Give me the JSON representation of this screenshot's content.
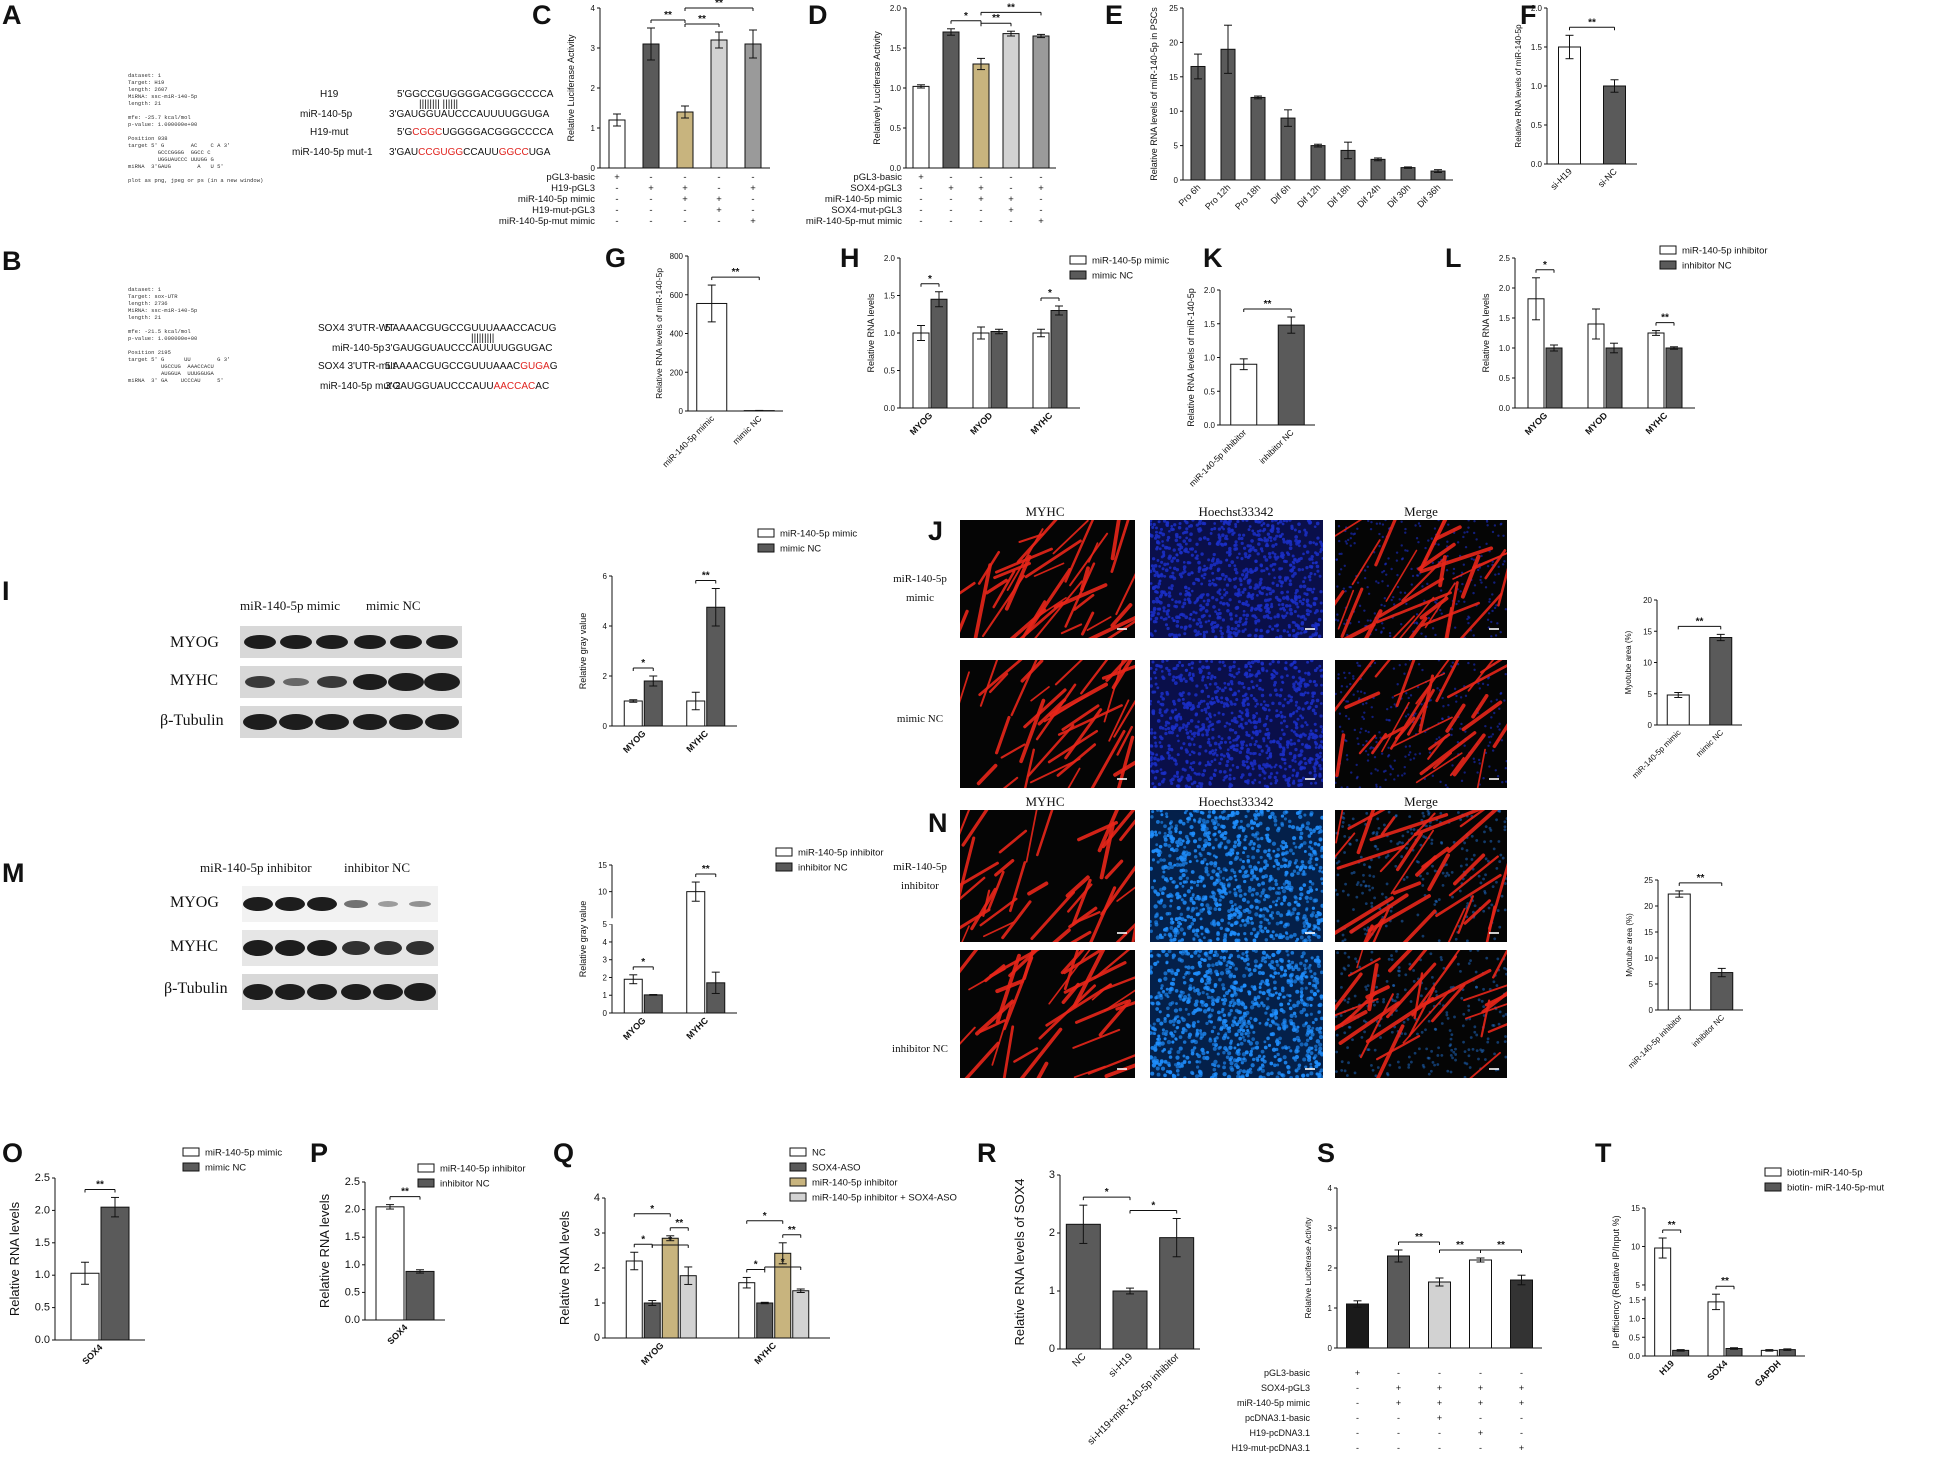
{
  "panel_letters": [
    "A",
    "B",
    "C",
    "D",
    "E",
    "F",
    "G",
    "H",
    "K",
    "L",
    "I",
    "J",
    "M",
    "N",
    "O",
    "P",
    "Q",
    "R",
    "S",
    "T"
  ],
  "colors": {
    "white": "#ffffff",
    "dark": "#5a5a5a",
    "khaki": "#c8b47e",
    "light": "#d2d2d2",
    "grey": "#9a9a9a",
    "black": "#1a1a1a",
    "red": "#e0231e",
    "fluor_red": "#e8261a",
    "fluor_blue": "#1b2fc8",
    "fluor_cyan": "#1f8fff"
  },
  "panelA": {
    "rnahybrid": "dataset: 1\nTarget: H19\nlength: 2607\nMiRNA: ssc-miR-140-5p\nlength: 21\n\nmfe: -25.7 kcal/mol\np-value: 1.000000e+00\n\nPosition 938\ntarget 5' G        AC    C A 3'\n         GCCCGGGG  GGCC C\n         UGGUAUCCC UUUGG G\nmiRNA  3'GAUG        A   U 5'\n\nplot as png, jpeg or ps (in a new window)",
    "labels": [
      "H19",
      "miR-140-5p",
      "H19-mut",
      "miR-140-5p mut-1"
    ],
    "seq_h19": "5'GGCCGUGGGGACGGGCCCCA",
    "pairs": "|||||||| ||||||",
    "seq_mir": "3'GAUGGUAUCCCAUUUUGGUGA",
    "mut_pre": "5'G",
    "mut_red": "CGGC",
    "mut_post": "UGGGGACGGGCCCCA",
    "mut1_pre": "3'GAU",
    "mut1_red1": "CCGUGG",
    "mut1_mid": "CCAUU",
    "mut1_red2": "GGCC",
    "mut1_post": "UGA"
  },
  "panelB": {
    "rnahybrid": "dataset: 1\nTarget: sox-UTR\nlength: 2736\nMiRNA: ssc-miR-140-5p\nlength: 21\n\nmfe: -21.5 kcal/mol\np-value: 1.000000e+00\n\nPosition 2195\ntarget 5' G      UU        G 3'\n          UGCCUG  AAACCACU\n          AUGGUA  UUUGGUGA\nmiRNA  3' GA    UCCCAU     5'",
    "labels": [
      "SOX4 3'UTR-WT",
      "miR-140-5p",
      "SOX4 3'UTR-mut",
      "miR-140-5p mut-2"
    ],
    "seq_wt": "5'AAAACGUGCCGUUUAAACCACUG",
    "pairs": "|||||||||",
    "seq_mir": "3'GAUGGUAUCCCAUUUUGGUGAC",
    "mut_pre": "5'AAAACGUGCCGUUUAAAC",
    "mut_red": "GUGA",
    "mut_post": "G",
    "mut2_pre": "3'GAUGGUAUCCCAUU",
    "mut2_red": "AACCAC",
    "mut2_post": "AC"
  },
  "chart_data": [
    {
      "id": "C",
      "type": "bar",
      "ylabel": "Relative Luciferase Activity",
      "ylim": [
        0,
        4
      ],
      "yticks": [
        0,
        1,
        2,
        3,
        4
      ],
      "values": [
        1.2,
        3.1,
        1.4,
        3.2,
        3.1
      ],
      "errors": [
        0.15,
        0.4,
        0.15,
        0.2,
        0.35
      ],
      "colors": [
        "#ffffff",
        "#5a5a5a",
        "#c8b47e",
        "#d2d2d2",
        "#9a9a9a"
      ],
      "sig": [
        {
          "a": 1,
          "b": 2,
          "t": "**"
        },
        {
          "a": 2,
          "b": 3,
          "t": "**"
        },
        {
          "a": 2,
          "b": 4,
          "t": "**"
        }
      ],
      "table_rows": [
        "pGL3-basic",
        "H19-pGL3",
        "miR-140-5p mimic",
        "H19-mut-pGL3",
        "miR-140-5p-mut mimic"
      ],
      "table": [
        [
          "+",
          "-",
          "-",
          "-",
          "-"
        ],
        [
          "-",
          "+",
          "+",
          "-",
          "+"
        ],
        [
          "-",
          "-",
          "+",
          "+",
          "-"
        ],
        [
          "-",
          "-",
          "-",
          "+",
          "-"
        ],
        [
          "-",
          "-",
          "-",
          "-",
          "+"
        ]
      ]
    },
    {
      "id": "D",
      "type": "bar",
      "ylabel": "Relatively Luciferase Activity",
      "ylim": [
        0,
        2.0
      ],
      "yticks": [
        "0.0",
        "0.5",
        "1.0",
        "1.5",
        "2.0"
      ],
      "values": [
        1.02,
        1.7,
        1.3,
        1.68,
        1.65
      ],
      "errors": [
        0.02,
        0.04,
        0.07,
        0.03,
        0.02
      ],
      "colors": [
        "#ffffff",
        "#5a5a5a",
        "#c8b47e",
        "#d2d2d2",
        "#9a9a9a"
      ],
      "sig": [
        {
          "a": 1,
          "b": 2,
          "t": "*"
        },
        {
          "a": 2,
          "b": 3,
          "t": "**"
        },
        {
          "a": 2,
          "b": 4,
          "t": "**"
        }
      ],
      "table_rows": [
        "pGL3-basic",
        "SOX4-pGL3",
        "miR-140-5p mimic",
        "SOX4-mut-pGL3",
        "miR-140-5p-mut mimic"
      ],
      "table": [
        [
          "+",
          "-",
          "-",
          "-",
          "-"
        ],
        [
          "-",
          "+",
          "+",
          "-",
          "+"
        ],
        [
          "-",
          "-",
          "+",
          "+",
          "-"
        ],
        [
          "-",
          "-",
          "-",
          "+",
          "-"
        ],
        [
          "-",
          "-",
          "-",
          "-",
          "+"
        ]
      ]
    },
    {
      "id": "E",
      "type": "bar",
      "ylabel": "Relative RNA levels of miR-140-5p in PSCs",
      "ylim": [
        0,
        25
      ],
      "yticks": [
        0,
        5,
        10,
        15,
        20,
        25
      ],
      "categories": [
        "Pro 6h",
        "Pro 12h",
        "Pro 18h",
        "Dif 6h",
        "Dif 12h",
        "Dif 18h",
        "Dif 24h",
        "Dif 30h",
        "Dif 36h"
      ],
      "values": [
        16.5,
        19,
        12,
        9,
        5,
        4.3,
        3,
        1.8,
        1.3
      ],
      "errors": [
        1.8,
        3.5,
        0.2,
        1.2,
        0.2,
        1.2,
        0.2,
        0.1,
        0.2
      ],
      "colors": [
        "#5a5a5a"
      ]
    },
    {
      "id": "F",
      "type": "bar",
      "ylabel": "Relative RNA levels of miR-140-5p",
      "ylim": [
        0,
        2.0
      ],
      "yticks": [
        "0.0",
        "0.5",
        "1.0",
        "1.5",
        "2.0"
      ],
      "categories": [
        "si-H19",
        "si-NC"
      ],
      "values": [
        1.5,
        1.0
      ],
      "errors": [
        0.15,
        0.08
      ],
      "colors": [
        "#ffffff",
        "#5a5a5a"
      ],
      "sig": [
        {
          "a": 0,
          "b": 1,
          "t": "**"
        }
      ]
    },
    {
      "id": "G",
      "type": "bar",
      "ylabel": "Relative RNA levels of miR-140-5p",
      "ylim": [
        0,
        800
      ],
      "yticks": [
        0,
        200,
        400,
        600,
        800
      ],
      "categories": [
        "miR-140-5p mimic",
        "mimic NC"
      ],
      "values": [
        555,
        2
      ],
      "errors": [
        95,
        1
      ],
      "colors": [
        "#ffffff",
        "#5a5a5a"
      ],
      "sig": [
        {
          "a": 0,
          "b": 1,
          "t": "**"
        }
      ]
    },
    {
      "id": "H",
      "type": "bar",
      "ylabel": "Relative RNA levels",
      "ylim": [
        0,
        2.0
      ],
      "yticks": [
        "0.0",
        "0.5",
        "1.0",
        "1.5",
        "2.0"
      ],
      "categories": [
        "MYOG",
        "MYOD",
        "MYHC"
      ],
      "series": [
        {
          "name": "miR-140-5p mimic",
          "values": [
            1.0,
            1.0,
            1.0
          ],
          "errors": [
            0.1,
            0.08,
            0.05
          ]
        },
        {
          "name": "mimic NC",
          "values": [
            1.45,
            1.02,
            1.3
          ],
          "errors": [
            0.1,
            0.03,
            0.06
          ]
        }
      ],
      "colors": [
        "#ffffff",
        "#5a5a5a"
      ],
      "sig": [
        {
          "a": 0,
          "b": 1,
          "t": "*"
        },
        {
          "a": 4,
          "b": 5,
          "t": "*"
        }
      ]
    },
    {
      "id": "K",
      "type": "bar",
      "ylabel": "Relative RNA levels of miR-140-5p",
      "ylim": [
        0,
        2.0
      ],
      "yticks": [
        "0.0",
        "0.5",
        "1.0",
        "1.5",
        "2.0"
      ],
      "categories": [
        "miR-140-5p inhibitor",
        "inhibitor NC"
      ],
      "values": [
        0.9,
        1.48
      ],
      "errors": [
        0.08,
        0.12
      ],
      "colors": [
        "#ffffff",
        "#5a5a5a"
      ],
      "sig": [
        {
          "a": 0,
          "b": 1,
          "t": "**"
        }
      ]
    },
    {
      "id": "L",
      "type": "bar",
      "ylabel": "Relative RNA levels",
      "ylim": [
        0,
        2.5
      ],
      "yticks": [
        "0.0",
        "0.5",
        "1.0",
        "1.5",
        "2.0",
        "2.5"
      ],
      "categories": [
        "MYOG",
        "MYOD",
        "MYHC"
      ],
      "series": [
        {
          "name": "miR-140-5p inhibitor",
          "values": [
            1.82,
            1.4,
            1.25
          ],
          "errors": [
            0.35,
            0.25,
            0.04
          ]
        },
        {
          "name": "inhibitor NC",
          "values": [
            1.0,
            1.0,
            1.0
          ],
          "errors": [
            0.05,
            0.08,
            0.02
          ]
        }
      ],
      "colors": [
        "#ffffff",
        "#5a5a5a"
      ],
      "sig": [
        {
          "a": 0,
          "b": 1,
          "t": "*"
        },
        {
          "a": 4,
          "b": 5,
          "t": "**"
        }
      ]
    },
    {
      "id": "I_chart",
      "type": "bar",
      "ylabel": "Relative gray value",
      "ylim": [
        0,
        6
      ],
      "yticks": [
        0,
        2,
        4,
        6
      ],
      "categories": [
        "MYOG",
        "MYHC"
      ],
      "series": [
        {
          "name": "miR-140-5p mimic",
          "values": [
            1.0,
            1.0
          ],
          "errors": [
            0.05,
            0.35
          ]
        },
        {
          "name": "mimic NC",
          "values": [
            1.8,
            4.75
          ],
          "errors": [
            0.2,
            0.75
          ]
        }
      ],
      "colors": [
        "#ffffff",
        "#5a5a5a"
      ],
      "sig": [
        {
          "a": 0,
          "b": 1,
          "t": "*"
        },
        {
          "a": 2,
          "b": 3,
          "t": "**"
        }
      ]
    },
    {
      "id": "J_chart",
      "type": "bar",
      "ylabel": "Myotube area (%)",
      "ylim": [
        0,
        20
      ],
      "yticks": [
        0,
        5,
        10,
        15,
        20
      ],
      "categories": [
        "miR-140-5p mimic",
        "mimic NC"
      ],
      "values": [
        4.8,
        14
      ],
      "errors": [
        0.4,
        0.5
      ],
      "colors": [
        "#ffffff",
        "#5a5a5a"
      ],
      "sig": [
        {
          "a": 0,
          "b": 1,
          "t": "**"
        }
      ]
    },
    {
      "id": "M_chart",
      "type": "bar",
      "ylabel": "Relative gray value",
      "ylim": [
        0,
        15
      ],
      "yticks": [
        0,
        1,
        2,
        3,
        4,
        5,
        10,
        15
      ],
      "categories": [
        "MYOG",
        "MYHC"
      ],
      "series": [
        {
          "name": "miR-140-5p inhibitor",
          "values": [
            1.9,
            10
          ],
          "errors": [
            0.25,
            1.8
          ]
        },
        {
          "name": "inhibitor NC",
          "values": [
            1.02,
            1.7
          ],
          "errors": [
            0.02,
            0.6
          ]
        }
      ],
      "colors": [
        "#ffffff",
        "#5a5a5a"
      ],
      "sig": [
        {
          "a": 0,
          "b": 1,
          "t": "*"
        },
        {
          "a": 2,
          "b": 3,
          "t": "**"
        }
      ]
    },
    {
      "id": "N_chart",
      "type": "bar",
      "ylabel": "Myotube area (%)",
      "ylim": [
        0,
        25
      ],
      "yticks": [
        0,
        5,
        10,
        15,
        20,
        25
      ],
      "categories": [
        "miR-140-5p inhibitor",
        "inhibitor NC"
      ],
      "values": [
        22.3,
        7.2
      ],
      "errors": [
        0.6,
        0.8
      ],
      "colors": [
        "#ffffff",
        "#5a5a5a"
      ],
      "sig": [
        {
          "a": 0,
          "b": 1,
          "t": "**"
        }
      ]
    },
    {
      "id": "O",
      "type": "bar",
      "ylabel": "Relative RNA levels",
      "ylim": [
        0,
        2.5
      ],
      "yticks": [
        "0.0",
        "0.5",
        "1.0",
        "1.5",
        "2.0",
        "2.5"
      ],
      "categories": [
        "SOX4"
      ],
      "series": [
        {
          "name": "miR-140-5p mimic",
          "values": [
            1.03
          ],
          "errors": [
            0.17
          ]
        },
        {
          "name": "mimic NC",
          "values": [
            2.05
          ],
          "errors": [
            0.15
          ]
        }
      ],
      "colors": [
        "#ffffff",
        "#5a5a5a"
      ],
      "sig": [
        {
          "a": 0,
          "b": 1,
          "t": "**"
        }
      ]
    },
    {
      "id": "P",
      "type": "bar",
      "ylabel": "Relative RNA levels",
      "ylim": [
        0,
        2.5
      ],
      "yticks": [
        "0.0",
        "0.5",
        "1.0",
        "1.5",
        "2.0",
        "2.5"
      ],
      "categories": [
        "SOX4"
      ],
      "series": [
        {
          "name": "miR-140-5p inhibitor",
          "values": [
            2.05
          ],
          "errors": [
            0.04
          ]
        },
        {
          "name": "inhibitor NC",
          "values": [
            0.88
          ],
          "errors": [
            0.03
          ]
        }
      ],
      "colors": [
        "#ffffff",
        "#5a5a5a"
      ],
      "sig": [
        {
          "a": 0,
          "b": 1,
          "t": "**"
        }
      ]
    },
    {
      "id": "Q",
      "type": "bar",
      "ylabel": "Relative RNA levels",
      "ylim": [
        0,
        4
      ],
      "yticks": [
        0,
        1,
        2,
        3,
        4
      ],
      "categories": [
        "MYOG",
        "MYHC"
      ],
      "series": [
        {
          "name": "NC",
          "values": [
            2.2,
            1.58
          ],
          "errors": [
            0.25,
            0.15
          ]
        },
        {
          "name": "SOX4-ASO",
          "values": [
            1.0,
            1.0
          ],
          "errors": [
            0.07,
            0.02
          ]
        },
        {
          "name": "miR-140-5p inhibitor",
          "values": [
            2.85,
            2.42
          ],
          "errors": [
            0.07,
            0.3
          ]
        },
        {
          "name": "miR-140-5p inhibitor + SOX4-ASO",
          "values": [
            1.78,
            1.35
          ],
          "errors": [
            0.25,
            0.05
          ]
        }
      ],
      "colors": [
        "#ffffff",
        "#5a5a5a",
        "#c8b47e",
        "#d2d2d2"
      ],
      "sig": [
        {
          "a": 0,
          "b": 1,
          "t": "*"
        },
        {
          "a": 0,
          "b": 2,
          "t": "*"
        },
        {
          "a": 2,
          "b": 3,
          "t": "**"
        },
        {
          "a": 1,
          "b": 3,
          "t": "*"
        },
        {
          "a": 4,
          "b": 5,
          "t": "*"
        },
        {
          "a": 4,
          "b": 6,
          "t": "*"
        },
        {
          "a": 6,
          "b": 7,
          "t": "**"
        },
        {
          "a": 5,
          "b": 7,
          "t": "*"
        }
      ]
    },
    {
      "id": "R",
      "type": "bar",
      "ylabel": "Relative RNA levels of SOX4",
      "ylim": [
        0,
        3
      ],
      "yticks": [
        0,
        1,
        2,
        3
      ],
      "categories": [
        "NC",
        "si-H19",
        "si-H19+miR-140-5p inhibitor"
      ],
      "values": [
        2.15,
        1.0,
        1.92
      ],
      "errors": [
        0.33,
        0.05,
        0.33
      ],
      "colors": [
        "#5a5a5a"
      ],
      "sig": [
        {
          "a": 0,
          "b": 1,
          "t": "*"
        },
        {
          "a": 1,
          "b": 2,
          "t": "*"
        }
      ]
    },
    {
      "id": "S",
      "type": "bar",
      "ylabel": "Relative Luciferase Activity",
      "ylim": [
        0,
        4
      ],
      "yticks": [
        0,
        1,
        2,
        3,
        4
      ],
      "values": [
        1.1,
        2.3,
        1.65,
        2.2,
        1.7
      ],
      "errors": [
        0.08,
        0.15,
        0.1,
        0.05,
        0.12
      ],
      "colors": [
        "#1a1a1a",
        "#5a5a5a",
        "#d2d2d2",
        "#ffffff",
        "#333333"
      ],
      "sig": [
        {
          "a": 1,
          "b": 2,
          "t": "**"
        },
        {
          "a": 2,
          "b": 3,
          "t": "**"
        },
        {
          "a": 3,
          "b": 4,
          "t": "**"
        }
      ],
      "table_rows": [
        "pGL3-basic",
        "SOX4-pGL3",
        "miR-140-5p mimic",
        "pcDNA3.1-basic",
        "H19-pcDNA3.1",
        "H19-mut-pcDNA3.1"
      ],
      "table": [
        [
          "+",
          "-",
          "-",
          "-",
          "-"
        ],
        [
          "-",
          "+",
          "+",
          "+",
          "+"
        ],
        [
          "-",
          "+",
          "+",
          "+",
          "+"
        ],
        [
          "-",
          "-",
          "+",
          "-",
          "-"
        ],
        [
          "-",
          "-",
          "-",
          "+",
          "-"
        ],
        [
          "-",
          "-",
          "-",
          "-",
          "+"
        ]
      ]
    },
    {
      "id": "T",
      "type": "bar",
      "ylabel": "IP efficiency (Relative IP/Input %)",
      "ylim": [
        0,
        15
      ],
      "yticks": [
        "0.0",
        "0.5",
        "1.0",
        "1.5",
        "5",
        "10",
        "15"
      ],
      "categories": [
        "H19",
        "SOX4",
        "GAPDH"
      ],
      "series": [
        {
          "name": "biotin-miR-140-5p",
          "values": [
            9.8,
            2.8,
            0.15
          ],
          "errors": [
            1.3,
            1.0,
            0.02
          ]
        },
        {
          "name": "biotin- miR-140-5p-mut",
          "values": [
            0.15,
            0.2,
            0.17
          ],
          "errors": [
            0.02,
            0.02,
            0.02
          ]
        }
      ],
      "colors": [
        "#ffffff",
        "#5a5a5a"
      ],
      "sig": [
        {
          "a": 0,
          "b": 1,
          "t": "**"
        },
        {
          "a": 2,
          "b": 3,
          "t": "**"
        }
      ]
    }
  ],
  "panelI": {
    "header1": "miR-140-5p mimic",
    "header2": "mimic NC",
    "bands": [
      "MYOG",
      "MYHC",
      "β-Tubulin"
    ]
  },
  "panelM": {
    "header1": "miR-140-5p inhibitor",
    "header2": "inhibitor NC",
    "bands": [
      "MYOG",
      "MYHC",
      "β-Tubulin"
    ]
  },
  "panelJ": {
    "cols": [
      "MYHC",
      "Hoechst33342",
      "Merge"
    ],
    "row1": "miR-140-5p\nmimic",
    "row2": "mimic NC"
  },
  "panelN": {
    "cols": [
      "MYHC",
      "Hoechst33342",
      "Merge"
    ],
    "row1": "miR-140-5p\ninhibitor",
    "row2": "inhibitor  NC"
  }
}
